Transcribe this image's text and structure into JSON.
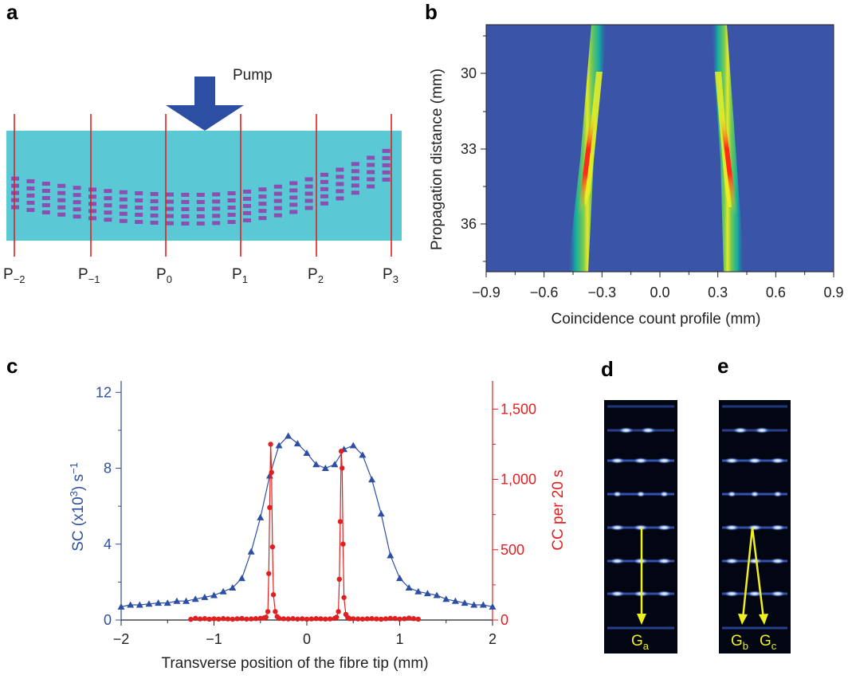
{
  "panel_labels": {
    "a": "a",
    "b": "b",
    "c": "c",
    "d": "d",
    "e": "e"
  },
  "panel_a": {
    "pump_label": "Pump",
    "planes": [
      {
        "base": "P",
        "sub": "−2"
      },
      {
        "base": "P",
        "sub": "−1"
      },
      {
        "base": "P",
        "sub": "0"
      },
      {
        "base": "P",
        "sub": "1"
      },
      {
        "base": "P",
        "sub": "2"
      },
      {
        "base": "P",
        "sub": "3"
      }
    ],
    "colors": {
      "crystal": "#5bc8d6",
      "planes": "#e02020",
      "arrow": "#2d4fa3",
      "fringes": "#8a4fb0"
    }
  },
  "panel_b": {
    "ylabel": "Propagation distance (mm)",
    "xlabel": "Coincidence count profile (mm)",
    "x_ticks": [
      "−0.9",
      "−0.6",
      "−0.3",
      "0.0",
      "0.3",
      "0.6",
      "0.9"
    ],
    "y_ticks": [
      "30",
      "33",
      "36"
    ],
    "colors": {
      "background": "#3a55a8"
    }
  },
  "chart_data": {
    "type": "scatter",
    "xlabel": "Transverse position of the fibre tip (mm)",
    "ylabel_left": {
      "base": "SC (x10",
      "sup1": "3",
      "mid": ") s",
      "sup2": "−1"
    },
    "ylabel_right": "CC per 20 s",
    "x_ticks": [
      "−2",
      "−1",
      "0",
      "1",
      "2"
    ],
    "y_left_ticks": [
      "0",
      "4",
      "8",
      "12"
    ],
    "y_right_ticks": [
      "0",
      "500",
      "1,000",
      "1,500"
    ],
    "xlim": [
      -2,
      2
    ],
    "ylim_left": [
      0,
      12.6
    ],
    "ylim_right": [
      0,
      1700
    ],
    "series": [
      {
        "axis": "left",
        "color": "#2d4fa3",
        "marker": "triangle",
        "x": [
          -2.0,
          -1.9,
          -1.8,
          -1.7,
          -1.6,
          -1.5,
          -1.4,
          -1.3,
          -1.2,
          -1.1,
          -1.0,
          -0.9,
          -0.8,
          -0.7,
          -0.6,
          -0.5,
          -0.4,
          -0.3,
          -0.2,
          -0.1,
          0.0,
          0.1,
          0.2,
          0.3,
          0.4,
          0.5,
          0.6,
          0.7,
          0.8,
          0.9,
          1.0,
          1.1,
          1.2,
          1.3,
          1.4,
          1.5,
          1.6,
          1.7,
          1.8,
          1.9,
          2.0
        ],
        "y": [
          0.7,
          0.8,
          0.8,
          0.85,
          0.9,
          0.9,
          1.0,
          1.0,
          1.1,
          1.2,
          1.3,
          1.5,
          1.7,
          2.2,
          3.6,
          5.4,
          7.6,
          9.2,
          9.7,
          9.3,
          8.8,
          8.2,
          8.0,
          8.2,
          9.0,
          9.2,
          8.7,
          7.4,
          5.6,
          3.4,
          2.2,
          1.7,
          1.5,
          1.4,
          1.3,
          1.1,
          1.0,
          0.9,
          0.8,
          0.8,
          0.7
        ]
      },
      {
        "axis": "right",
        "color": "#e02020",
        "marker": "circle",
        "x": [
          -1.25,
          -1.2,
          -1.15,
          -1.1,
          -1.05,
          -1.0,
          -0.95,
          -0.9,
          -0.85,
          -0.8,
          -0.75,
          -0.7,
          -0.65,
          -0.6,
          -0.55,
          -0.5,
          -0.46,
          -0.44,
          -0.42,
          -0.41,
          -0.4,
          -0.39,
          -0.38,
          -0.37,
          -0.36,
          -0.34,
          -0.32,
          -0.3,
          -0.25,
          -0.2,
          -0.15,
          -0.1,
          -0.05,
          0.0,
          0.05,
          0.1,
          0.15,
          0.2,
          0.25,
          0.3,
          0.32,
          0.34,
          0.35,
          0.36,
          0.37,
          0.38,
          0.39,
          0.4,
          0.42,
          0.44,
          0.46,
          0.5,
          0.55,
          0.6,
          0.65,
          0.7,
          0.75,
          0.8,
          0.85,
          0.9,
          0.95,
          1.0,
          1.05,
          1.1,
          1.15,
          1.2
        ],
        "y": [
          5,
          12,
          8,
          10,
          6,
          9,
          7,
          10,
          8,
          6,
          9,
          11,
          7,
          8,
          10,
          12,
          15,
          20,
          60,
          330,
          800,
          1250,
          1050,
          520,
          180,
          60,
          25,
          12,
          9,
          8,
          10,
          7,
          9,
          6,
          8,
          10,
          9,
          7,
          8,
          12,
          20,
          60,
          290,
          700,
          1200,
          1080,
          540,
          160,
          40,
          18,
          10,
          9,
          8,
          7,
          9,
          10,
          8,
          6,
          9,
          12,
          11,
          7,
          9,
          14,
          10,
          6
        ]
      }
    ]
  },
  "panel_d": {
    "labels": [
      {
        "base": "G",
        "sub": "a"
      }
    ]
  },
  "panel_e": {
    "labels": [
      {
        "base": "G",
        "sub": "b"
      },
      {
        "base": "G",
        "sub": "c"
      }
    ]
  }
}
